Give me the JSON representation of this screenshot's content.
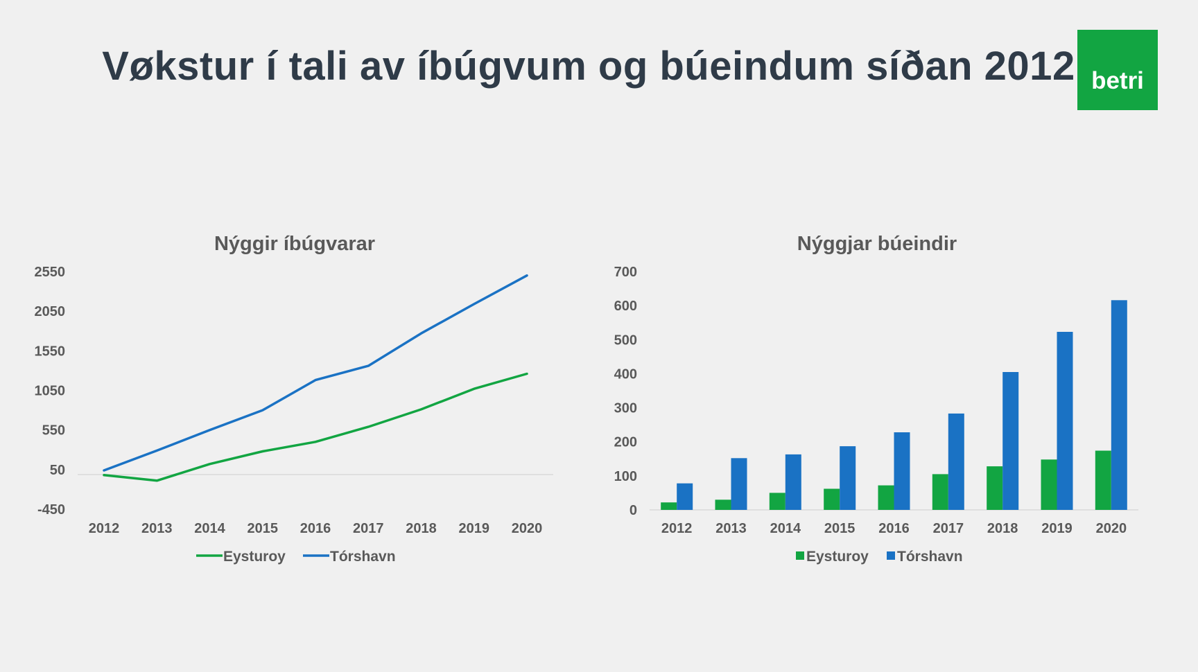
{
  "slide": {
    "title": "Vøkstur í tali av íbúgvum og búeindum síðan 2012",
    "logo_text": "betri"
  },
  "colors": {
    "eysturoy": "#12a542",
    "torshavn": "#1a72c4",
    "axis": "#d9d9d9",
    "text": "#595959"
  },
  "chart_data": [
    {
      "type": "line",
      "title": "Nýggir íbúgvarar",
      "x": [
        "2012",
        "2013",
        "2014",
        "2015",
        "2016",
        "2017",
        "2018",
        "2019",
        "2020"
      ],
      "y_ticks": [
        "2550",
        "2050",
        "1550",
        "1050",
        "550",
        "50",
        "-450"
      ],
      "ylim": [
        -450,
        2550
      ],
      "series": [
        {
          "name": "Eysturoy",
          "color": "#12a542",
          "values": [
            -20,
            -90,
            120,
            280,
            400,
            590,
            810,
            1070,
            1260
          ]
        },
        {
          "name": "Tórshavn",
          "color": "#1a72c4",
          "values": [
            40,
            290,
            550,
            800,
            1180,
            1360,
            1770,
            2140,
            2500
          ]
        }
      ],
      "legend": "bottom",
      "grid": false
    },
    {
      "type": "bar",
      "title": "Nýggjar búeindir",
      "categories": [
        "2012",
        "2013",
        "2014",
        "2015",
        "2016",
        "2017",
        "2018",
        "2019",
        "2020"
      ],
      "y_ticks": [
        "700",
        "600",
        "500",
        "400",
        "300",
        "200",
        "100",
        "0"
      ],
      "ylim": [
        0,
        700
      ],
      "series": [
        {
          "name": "Eysturoy",
          "color": "#12a542",
          "values": [
            22,
            30,
            50,
            62,
            72,
            105,
            128,
            148,
            174
          ]
        },
        {
          "name": "Tórshavn",
          "color": "#1a72c4",
          "values": [
            78,
            152,
            163,
            187,
            228,
            283,
            405,
            523,
            616
          ]
        }
      ],
      "legend": "bottom",
      "grid": false
    }
  ]
}
